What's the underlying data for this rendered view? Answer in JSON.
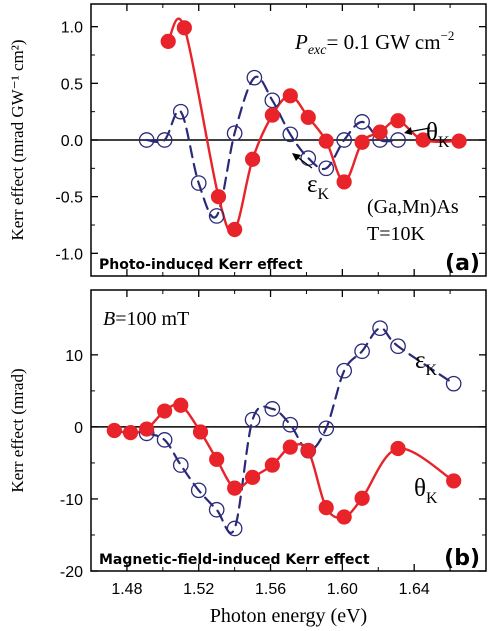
{
  "chart_data": [
    {
      "type": "line",
      "panel_label": "(a)",
      "annotation": "Photo-induced Kerr effect",
      "ylabel": "Kerr effect (mrad GW⁻¹ cm²)",
      "xlim": [
        1.46,
        1.68
      ],
      "ylim": [
        -1.2,
        1.2
      ],
      "yticks": [
        -1.0,
        -0.5,
        0.0,
        0.5,
        1.0
      ],
      "ytick_labels": [
        "-1.0",
        "-0.5",
        "0.0",
        "0.5",
        "1.0"
      ],
      "power_prefix": "P",
      "power_subscript": "exc",
      "power_value": "= 0.1 GW cm",
      "power_exponent": "−2",
      "sample": "(Ga,Mn)As",
      "temperature": "T=10K",
      "series": [
        {
          "name": "θK",
          "symbol": "θ",
          "subscript": "K",
          "marker": "filled-circle",
          "color": "#e8232a",
          "x": [
            1.503,
            1.512,
            1.531,
            1.54,
            1.55,
            1.561,
            1.571,
            1.581,
            1.591,
            1.601,
            1.611,
            1.621,
            1.631,
            1.645,
            1.665
          ],
          "y": [
            0.87,
            0.99,
            -0.5,
            -0.79,
            -0.17,
            0.22,
            0.39,
            0.2,
            -0.01,
            -0.37,
            -0.02,
            0.07,
            0.17,
            0.0,
            -0.01
          ]
        },
        {
          "name": "εK",
          "symbol": "ε",
          "subscript": "K",
          "marker": "open-circle",
          "color": "#2b2a7a",
          "x": [
            1.491,
            1.501,
            1.51,
            1.52,
            1.53,
            1.54,
            1.551,
            1.561,
            1.571,
            1.581,
            1.591,
            1.601,
            1.611,
            1.621,
            1.631
          ],
          "y": [
            0.0,
            0.0,
            0.25,
            -0.38,
            -0.67,
            0.06,
            0.55,
            0.35,
            0.05,
            -0.16,
            -0.25,
            0.0,
            0.16,
            0.0,
            0.0
          ]
        }
      ]
    },
    {
      "type": "line",
      "panel_label": "(b)",
      "annotation": "Magnetic-field-induced Kerr effect",
      "xlabel": "Photon energy (eV)",
      "ylabel": "Kerr effect (mrad)",
      "xlim": [
        1.46,
        1.68
      ],
      "ylim": [
        -20,
        19
      ],
      "xticks": [
        1.48,
        1.52,
        1.56,
        1.6,
        1.64
      ],
      "xtick_labels": [
        "1.48",
        "1.52",
        "1.56",
        "1.60",
        "1.64"
      ],
      "yticks": [
        -20,
        -10,
        0,
        10
      ],
      "ytick_labels": [
        "-20",
        "-10",
        "0",
        "10"
      ],
      "field_prefix": "B",
      "field_value": "=100 mT",
      "series": [
        {
          "name": "θK",
          "symbol": "θ",
          "subscript": "K",
          "marker": "filled-circle",
          "color": "#e8232a",
          "x": [
            1.473,
            1.482,
            1.491,
            1.501,
            1.51,
            1.521,
            1.53,
            1.54,
            1.55,
            1.561,
            1.571,
            1.581,
            1.591,
            1.601,
            1.611,
            1.631,
            1.662
          ],
          "y": [
            -0.5,
            -0.8,
            -0.3,
            2.2,
            3.0,
            -0.7,
            -4.5,
            -8.5,
            -7.0,
            -5.3,
            -2.8,
            -3.3,
            -11.2,
            -12.5,
            -9.9,
            -3.0,
            -7.5
          ]
        },
        {
          "name": "εK",
          "symbol": "ε",
          "subscript": "K",
          "marker": "open-circle",
          "color": "#2b2a7a",
          "x": [
            1.491,
            1.501,
            1.51,
            1.52,
            1.53,
            1.54,
            1.55,
            1.561,
            1.571,
            1.581,
            1.591,
            1.601,
            1.611,
            1.621,
            1.631,
            1.662
          ],
          "y": [
            -0.9,
            -1.8,
            -5.3,
            -8.8,
            -11.5,
            -14.1,
            1.0,
            2.5,
            0.3,
            -3.3,
            -0.2,
            7.8,
            10.5,
            13.7,
            11.2,
            6.0
          ]
        }
      ]
    }
  ]
}
